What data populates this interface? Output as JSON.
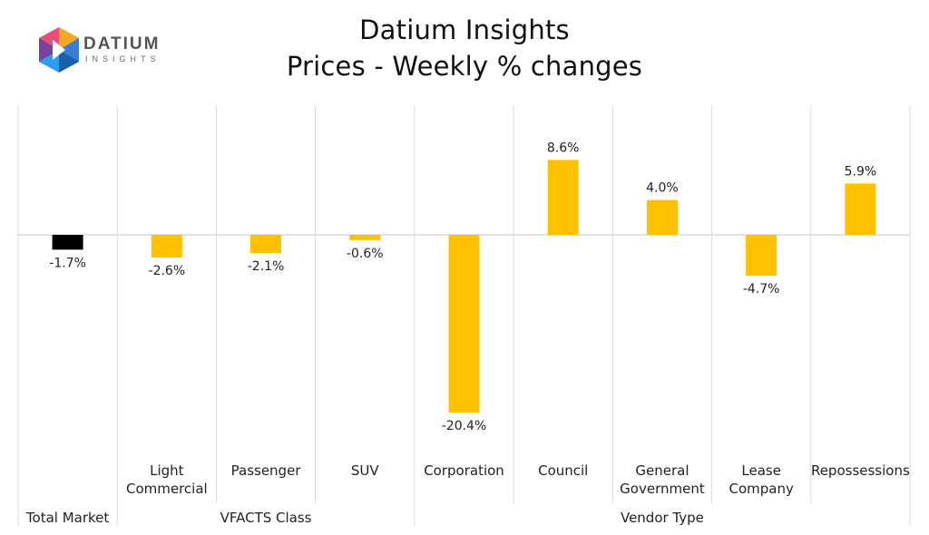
{
  "logo": {
    "word": "DATIUM",
    "sub": "INSIGHTS"
  },
  "title_line1": "Datium Insights",
  "title_line2": "Prices - Weekly % changes",
  "colors": {
    "highlight": "#000000",
    "bar": "#FFC000",
    "grid": "#D9D9D9"
  },
  "chart_data": {
    "type": "bar",
    "title": "Datium Insights\nPrices - Weekly % changes",
    "xlabel": "",
    "ylabel": "",
    "value_format": "percent_1dp",
    "categories": [
      {
        "name": "",
        "group": "Total Market",
        "value": -1.7,
        "label": "-1.7%",
        "color": "#000000"
      },
      {
        "name": "Light Commercial",
        "group": "VFACTS Class",
        "value": -2.6,
        "label": "-2.6%",
        "color": "#FFC000"
      },
      {
        "name": "Passenger",
        "group": "VFACTS Class",
        "value": -2.1,
        "label": "-2.1%",
        "color": "#FFC000"
      },
      {
        "name": "SUV",
        "group": "VFACTS Class",
        "value": -0.6,
        "label": "-0.6%",
        "color": "#FFC000"
      },
      {
        "name": "Corporation",
        "group": "Vendor Type",
        "value": -20.4,
        "label": "-20.4%",
        "color": "#FFC000"
      },
      {
        "name": "Council",
        "group": "Vendor Type",
        "value": 8.6,
        "label": "8.6%",
        "color": "#FFC000"
      },
      {
        "name": "General Government",
        "group": "Vendor Type",
        "value": 4.0,
        "label": "4.0%",
        "color": "#FFC000"
      },
      {
        "name": "Lease Company",
        "group": "Vendor Type",
        "value": -4.7,
        "label": "-4.7%",
        "color": "#FFC000"
      },
      {
        "name": "Repossessions",
        "group": "Vendor Type",
        "value": 5.9,
        "label": "5.9%",
        "color": "#FFC000"
      }
    ],
    "groups": [
      {
        "name": "Total Market",
        "count": 1
      },
      {
        "name": "VFACTS Class",
        "count": 3
      },
      {
        "name": "Vendor Type",
        "count": 5
      }
    ],
    "grid": true,
    "legend": "none"
  }
}
